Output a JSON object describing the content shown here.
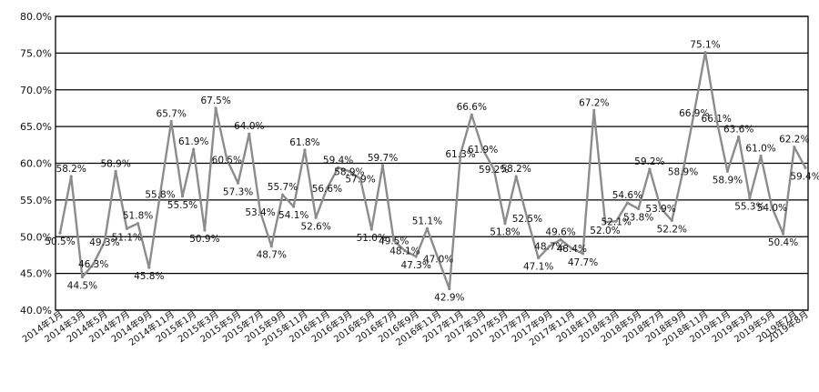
{
  "chart_data": {
    "type": "line",
    "title": "",
    "xlabel": "",
    "ylabel": "",
    "ylim": [
      40,
      80
    ],
    "yticks": [
      "40.0%",
      "45.0%",
      "50.0%",
      "55.0%",
      "60.0%",
      "65.0%",
      "70.0%",
      "75.0%",
      "80.0%"
    ],
    "grid": true,
    "legend": "none",
    "line_color": "#8c8c8c",
    "x_first": "2014年1月",
    "x_last": "2019年8月",
    "series": [
      {
        "values": [
          50.5,
          58.2,
          44.5,
          46.3,
          49.3,
          58.9,
          51.1,
          51.8,
          45.8,
          55.8,
          65.7,
          55.5,
          61.9,
          50.9,
          67.5,
          60.5,
          57.3,
          64.0,
          53.4,
          48.7,
          55.7,
          54.1,
          61.8,
          52.6,
          56.6,
          59.4,
          58.9,
          57.9,
          51.0,
          59.7,
          49.5,
          48.1,
          47.3,
          51.1,
          47.0,
          42.9,
          61.3,
          66.6,
          61.9,
          59.2,
          51.8,
          58.2,
          52.5,
          47.1,
          48.7,
          49.6,
          48.4,
          47.7,
          67.2,
          52.0,
          52.1,
          54.6,
          53.8,
          59.2,
          53.9,
          52.2,
          58.9,
          66.9,
          75.1,
          66.1,
          58.9,
          63.6,
          55.3,
          61.0,
          54.0,
          50.4,
          62.2,
          59.4
        ],
        "labels": [
          "50.5%",
          "58.2%",
          "44.5%",
          "46.3%",
          "49.3%",
          "58.9%",
          "51.1%",
          "51.8%",
          "45.8%",
          "55.8%",
          "65.7%",
          "55.5%",
          "61.9%",
          "50.9%",
          "67.5%",
          "60.5%",
          "57.3%",
          "64.0%",
          "53.4%",
          "48.7%",
          "55.7%",
          "54.1%",
          "61.8%",
          "52.6%",
          "56.6%",
          "59.4%",
          "58.9%",
          "57.9%",
          "51.0%",
          "59.7%",
          "49.5%",
          "48.1%",
          "47.3%",
          "51.1%",
          "47.0%",
          "42.9%",
          "61.3%",
          "66.6%",
          "61.9%",
          "59.2%",
          "51.8%",
          "58.2%",
          "52.5%",
          "47.1%",
          "48.7%",
          "49.6%",
          "48.4%",
          "47.7%",
          "67.2%",
          "52.0%",
          "52.1%",
          "54.6%",
          "53.8%",
          "59.2%",
          "53.9%",
          "52.2%",
          "58.9%",
          "66.9%",
          "75.1%",
          "66.1%",
          "58.9%",
          "63.6%",
          "55.3%",
          "61.0%",
          "54.0%",
          "50.4%",
          "62.2%",
          "59.4%"
        ]
      }
    ]
  }
}
